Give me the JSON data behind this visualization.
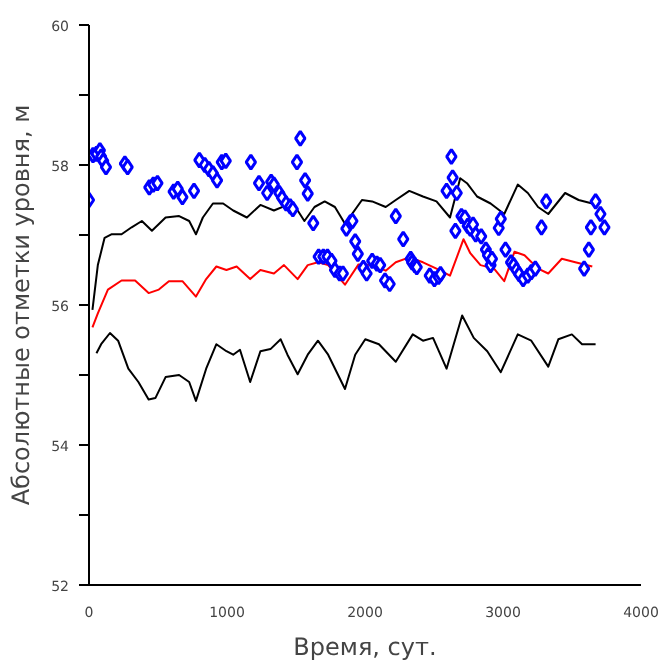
{
  "chart_data": {
    "type": "line",
    "xlabel": "Время, сут.",
    "ylabel": "Абсолютные отметки уровня, м",
    "xlim": [
      0,
      4000
    ],
    "ylim": [
      52,
      60
    ],
    "xticks": [
      0,
      1000,
      2000,
      3000,
      4000
    ],
    "yticks": [
      52,
      {
        "value": 53,
        "label": null
      },
      54,
      {
        "value": 55,
        "label": null
      },
      56,
      {
        "value": 57,
        "label": null
      },
      58,
      {
        "value": 59,
        "label": null
      },
      60
    ],
    "grid": false,
    "series": [
      {
        "color": "#000000",
        "x": [
          25,
          64,
          113,
          162,
          236,
          309,
          383,
          456,
          555,
          653,
          726,
          775,
          825,
          898,
          972,
          1045,
          1144,
          1242,
          1340,
          1438,
          1512,
          1561,
          1634,
          1708,
          1782,
          1855,
          1978,
          2052,
          2150,
          2223,
          2321,
          2420,
          2518,
          2616,
          2690,
          2739,
          2812,
          2910,
          3009,
          3107,
          3180,
          3254,
          3328,
          3450,
          3548,
          3647
        ],
        "values": [
          55.93,
          56.57,
          56.96,
          57.01,
          57.01,
          57.11,
          57.2,
          57.06,
          57.25,
          57.27,
          57.2,
          57.01,
          57.25,
          57.45,
          57.45,
          57.35,
          57.25,
          57.43,
          57.35,
          57.43,
          57.35,
          57.2,
          57.4,
          57.48,
          57.4,
          57.16,
          57.5,
          57.48,
          57.4,
          57.5,
          57.63,
          57.55,
          57.48,
          57.25,
          57.81,
          57.74,
          57.55,
          57.45,
          57.3,
          57.72,
          57.6,
          57.4,
          57.3,
          57.6,
          57.5,
          57.45
        ]
      },
      {
        "color": "#ff0000",
        "x": [
          25,
          64,
          137,
          236,
          334,
          432,
          506,
          579,
          677,
          775,
          849,
          923,
          996,
          1070,
          1168,
          1242,
          1340,
          1413,
          1512,
          1585,
          1659,
          1733,
          1855,
          1953,
          2052,
          2150,
          2223,
          2321,
          2420,
          2518,
          2616,
          2714,
          2763,
          2837,
          2935,
          3009,
          3083,
          3156,
          3254,
          3328,
          3426,
          3524,
          3647
        ],
        "values": [
          55.68,
          55.88,
          56.22,
          56.35,
          56.35,
          56.17,
          56.22,
          56.34,
          56.34,
          56.12,
          56.37,
          56.55,
          56.5,
          56.55,
          56.37,
          56.5,
          56.45,
          56.57,
          56.37,
          56.57,
          56.61,
          56.57,
          56.29,
          56.58,
          56.57,
          56.49,
          56.61,
          56.68,
          56.61,
          56.52,
          56.42,
          56.94,
          56.74,
          56.57,
          56.52,
          56.34,
          56.76,
          56.71,
          56.52,
          56.45,
          56.66,
          56.61,
          56.55
        ]
      },
      {
        "color": "#000000",
        "x": [
          54,
          88,
          152,
          211,
          285,
          358,
          432,
          481,
          555,
          653,
          726,
          775,
          849,
          923,
          996,
          1045,
          1094,
          1168,
          1242,
          1315,
          1389,
          1438,
          1512,
          1585,
          1659,
          1733,
          1855,
          1929,
          2002,
          2101,
          2223,
          2346,
          2420,
          2493,
          2591,
          2704,
          2788,
          2886,
          2984,
          3107,
          3205,
          3328,
          3401,
          3499,
          3573,
          3671
        ],
        "values": [
          55.31,
          55.44,
          55.6,
          55.49,
          55.09,
          54.9,
          54.65,
          54.67,
          54.97,
          55.0,
          54.9,
          54.63,
          55.09,
          55.44,
          55.34,
          55.29,
          55.36,
          54.9,
          55.34,
          55.37,
          55.51,
          55.29,
          55.01,
          55.29,
          55.49,
          55.29,
          54.8,
          55.29,
          55.51,
          55.44,
          55.19,
          55.58,
          55.49,
          55.53,
          55.09,
          55.85,
          55.53,
          55.34,
          55.04,
          55.58,
          55.49,
          55.12,
          55.51,
          55.58,
          55.44,
          55.44
        ]
      },
      {
        "type": "scatter",
        "color": "#0000ff",
        "marker": "diamond",
        "x": [
          0,
          29,
          54,
          79,
          88,
          103,
          123,
          260,
          280,
          437,
          466,
          496,
          613,
          643,
          677,
          761,
          800,
          839,
          869,
          898,
          928,
          962,
          991,
          1173,
          1232,
          1291,
          1320,
          1340,
          1379,
          1399,
          1428,
          1458,
          1477,
          1507,
          1531,
          1566,
          1585,
          1625,
          1664,
          1698,
          1728,
          1757,
          1782,
          1816,
          1840,
          1865,
          1894,
          1909,
          1929,
          1948,
          1988,
          2012,
          2052,
          2086,
          2110,
          2145,
          2179,
          2223,
          2277,
          2331,
          2341,
          2361,
          2375,
          2469,
          2503,
          2533,
          2547,
          2591,
          2626,
          2635,
          2655,
          2665,
          2699,
          2724,
          2744,
          2763,
          2783,
          2802,
          2842,
          2876,
          2891,
          2910,
          2920,
          2969,
          2984,
          3018,
          3058,
          3077,
          3097,
          3117,
          3146,
          3180,
          3205,
          3234,
          3279,
          3313,
          3588,
          3622,
          3637,
          3671,
          3706,
          3735
        ],
        "values": [
          57.5,
          58.14,
          58.16,
          58.21,
          58.12,
          58.06,
          57.97,
          58.02,
          57.97,
          57.68,
          57.72,
          57.74,
          57.62,
          57.66,
          57.54,
          57.63,
          58.07,
          58.0,
          57.94,
          57.88,
          57.78,
          58.04,
          58.06,
          58.04,
          57.74,
          57.6,
          57.76,
          57.72,
          57.6,
          57.53,
          57.45,
          57.41,
          57.37,
          58.04,
          58.38,
          57.78,
          57.59,
          57.17,
          56.69,
          56.69,
          56.69,
          56.63,
          56.5,
          56.45,
          56.45,
          57.09,
          57.18,
          57.2,
          56.91,
          56.73,
          56.53,
          56.45,
          56.63,
          56.59,
          56.57,
          56.35,
          56.3,
          57.27,
          56.94,
          56.66,
          56.61,
          56.57,
          56.54,
          56.42,
          56.37,
          56.4,
          56.44,
          57.63,
          58.12,
          57.82,
          57.06,
          57.6,
          57.27,
          57.25,
          57.13,
          57.09,
          57.15,
          57.01,
          56.98,
          56.79,
          56.71,
          56.57,
          56.66,
          57.1,
          57.23,
          56.79,
          56.61,
          56.57,
          56.5,
          56.44,
          56.37,
          56.42,
          56.47,
          56.52,
          57.11,
          57.48,
          56.52,
          56.79,
          57.11,
          57.48,
          57.3,
          57.11
        ]
      }
    ]
  }
}
